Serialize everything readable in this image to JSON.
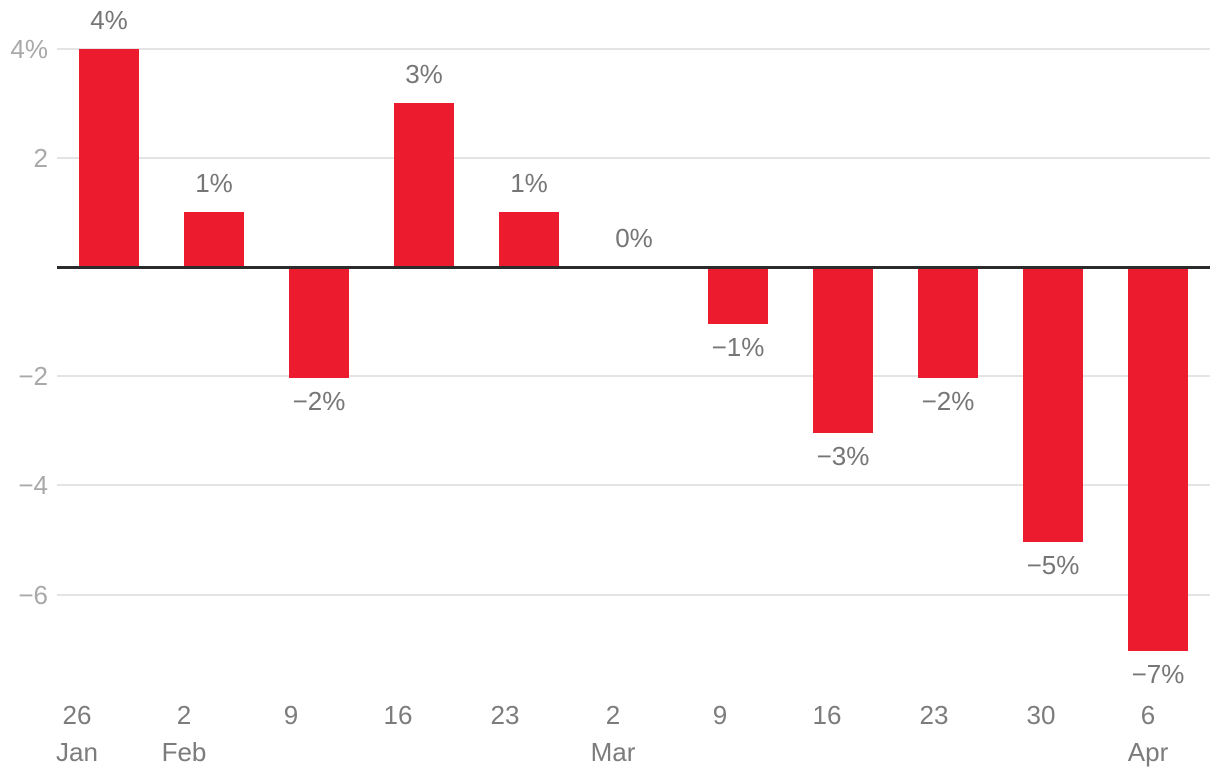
{
  "chart_data": {
    "type": "bar",
    "title": "",
    "xlabel": "",
    "ylabel": "",
    "categories": [
      {
        "day": "26",
        "month": "Jan"
      },
      {
        "day": "2",
        "month": "Feb"
      },
      {
        "day": "9",
        "month": ""
      },
      {
        "day": "16",
        "month": ""
      },
      {
        "day": "23",
        "month": ""
      },
      {
        "day": "2",
        "month": "Mar"
      },
      {
        "day": "9",
        "month": ""
      },
      {
        "day": "16",
        "month": ""
      },
      {
        "day": "23",
        "month": ""
      },
      {
        "day": "30",
        "month": ""
      },
      {
        "day": "6",
        "month": "Apr"
      }
    ],
    "values": [
      4,
      1,
      -2,
      3,
      1,
      0,
      -1,
      -3,
      -2,
      -5,
      -7
    ],
    "bar_labels": [
      "4%",
      "1%",
      "−2%",
      "3%",
      "1%",
      "0%",
      "−1%",
      "−3%",
      "−2%",
      "−5%",
      "−7%"
    ],
    "y_ticks": [
      {
        "label": "4%",
        "value": 4
      },
      {
        "label": "2",
        "value": 2
      },
      {
        "label": "−2",
        "value": -2
      },
      {
        "label": "−4",
        "value": -4
      },
      {
        "label": "−6",
        "value": -6
      }
    ],
    "ylim": [
      -7.5,
      4.5
    ],
    "baseline_value": 0,
    "grid": true,
    "legend": "none",
    "bar_color": "#ED1B2E",
    "y_axis_label_color": "#a9a9a9",
    "x_axis_label_color": "#7c7c7c",
    "data_label_color": "#767676",
    "gridline_color": "#e4e4e4",
    "baseline_color": "#2b2b2b"
  }
}
